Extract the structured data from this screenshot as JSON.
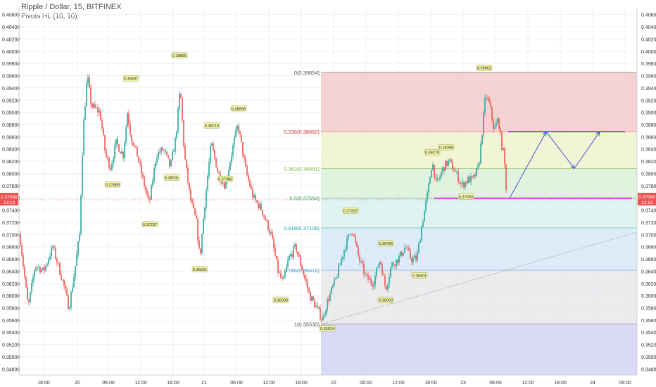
{
  "header": {
    "title": "Ripple / Dollar, 15, BITFINEX",
    "indicator": "Pivots HL (10, 10)"
  },
  "colors": {
    "up": "#26a69a",
    "down": "#ef5350",
    "grid": "#eef0f3",
    "axis_text": "#333333",
    "price_marker": "#ef5350",
    "magenta": "#e000e0",
    "arrow": "#3344cc"
  },
  "chart_data": {
    "type": "candlestick",
    "symbol": "Ripple / Dollar",
    "interval": "15",
    "exchange": "BITFINEX",
    "ylim": [
      0.347,
      0.407
    ],
    "y_ticks": [
      "0.40800",
      "0.40600",
      "0.40400",
      "0.40200",
      "0.40000",
      "0.39800",
      "0.39600",
      "0.39400",
      "0.39200",
      "0.39000",
      "0.38800",
      "0.38600",
      "0.38400",
      "0.38200",
      "0.38000",
      "0.37800",
      "0.37600",
      "0.37400",
      "0.37200",
      "0.37000",
      "0.36800",
      "0.36600",
      "0.36400",
      "0.36200",
      "0.36000",
      "0.35800",
      "0.35600",
      "0.35400",
      "0.35200",
      "0.35000",
      "0.34800"
    ],
    "x_ticks": [
      "18:00",
      "20",
      "06:00",
      "12:00",
      "18:00",
      "21",
      "06:00",
      "12:00",
      "18:00",
      "22",
      "06:00",
      "12:00",
      "18:00",
      "23",
      "06:00",
      "12:00",
      "18:00",
      "24",
      "06:00"
    ],
    "current_price": "0.37568",
    "countdown": "13:13",
    "pivot_labels": [
      "0.39865",
      "0.39487",
      "0.37889",
      "0.38001",
      "0.37237",
      "0.38715",
      "0.38996",
      "0.37980",
      "0.36501",
      "0.36000",
      "0.35534",
      "0.37322",
      "0.36786",
      "0.36000",
      "0.36401",
      "0.38279",
      "0.38358",
      "0.37693",
      "0.39662"
    ],
    "fib_levels": [
      {
        "ratio": "0",
        "price": "0.39654",
        "color": "#555555",
        "fill": "#f2c4c4"
      },
      {
        "ratio": "0.236",
        "price": "0.38682",
        "color": "#d32f2f",
        "fill": "#eef0c8"
      },
      {
        "ratio": "0.382",
        "price": "0.38081",
        "color": "#7cb342",
        "fill": "#d6efd3"
      },
      {
        "ratio": "0.5",
        "price": "0.37594",
        "color": "#2e9e5b",
        "fill": "#d4f0ec"
      },
      {
        "ratio": "0.618",
        "price": "0.37108",
        "color": "#17a2a2",
        "fill": "#d3e5f7"
      },
      {
        "ratio": "0.786",
        "price": "0.36416",
        "color": "#3a8fd6",
        "fill": "#e6e6ea"
      },
      {
        "ratio": "1",
        "price": "0.35535",
        "color": "#555555",
        "fill": "#cdcdf3"
      }
    ],
    "magenta_levels": [
      0.38682,
      0.37594
    ],
    "projection_path": [
      0.37594,
      0.38682,
      0.38081,
      0.38682
    ]
  }
}
